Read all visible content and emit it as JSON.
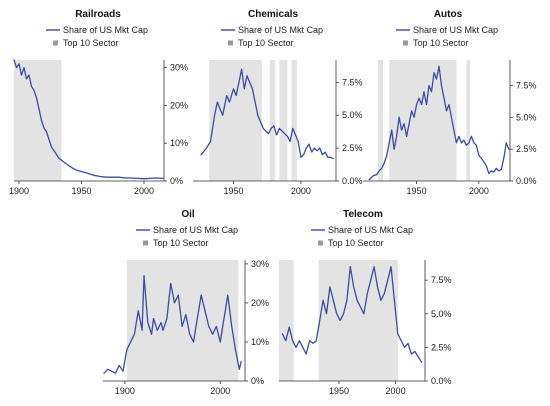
{
  "legend": {
    "line_label": "Share of US Mkt Cap",
    "band_label": "Top 10 Sector"
  },
  "colors": {
    "line": "#3b4aa3",
    "band": "#e3e3e3",
    "legend_square": "#999999",
    "axis": "#333333"
  },
  "chart_data": [
    {
      "type": "line",
      "title": "Railroads",
      "xlim": [
        1896,
        2016
      ],
      "ylim": [
        0,
        0.32
      ],
      "x_ticks": [
        1900,
        1950,
        2000
      ],
      "y_ticks": [
        0,
        0.1,
        0.2,
        0.3
      ],
      "y_tick_labels": [
        "0%",
        "10%",
        "20%",
        "30%"
      ],
      "top10_periods": [
        [
          1896,
          1934
        ]
      ],
      "series": [
        {
          "x": [
            1896,
            1898,
            1900,
            1902,
            1904,
            1906,
            1908,
            1910,
            1912,
            1914,
            1916,
            1918,
            1920,
            1922,
            1924,
            1926,
            1928,
            1930,
            1932,
            1934,
            1936,
            1938,
            1940,
            1945,
            1950,
            1955,
            1960,
            1965,
            1970,
            1975,
            1980,
            1985,
            1990,
            1995,
            2000,
            2005,
            2010,
            2015
          ],
          "values": [
            0.32,
            0.3,
            0.31,
            0.28,
            0.3,
            0.27,
            0.28,
            0.25,
            0.24,
            0.22,
            0.19,
            0.16,
            0.14,
            0.13,
            0.11,
            0.09,
            0.08,
            0.07,
            0.06,
            0.055,
            0.05,
            0.045,
            0.04,
            0.03,
            0.025,
            0.02,
            0.015,
            0.012,
            0.01,
            0.01,
            0.01,
            0.008,
            0.008,
            0.007,
            0.006,
            0.007,
            0.008,
            0.007
          ]
        }
      ]
    },
    {
      "type": "line",
      "title": "Chemicals",
      "xlim": [
        1920,
        2026
      ],
      "ylim": [
        0,
        0.092
      ],
      "x_ticks": [
        1950,
        2000
      ],
      "y_ticks": [
        0,
        0.025,
        0.05,
        0.075
      ],
      "y_tick_labels": [
        "0.0%",
        "2.5%",
        "5.0%",
        "7.5%"
      ],
      "top10_periods": [
        [
          1932,
          1971
        ],
        [
          1977,
          1981
        ],
        [
          1984,
          1990
        ],
        [
          1993,
          1997
        ]
      ],
      "series": [
        {
          "x": [
            1926,
            1930,
            1933,
            1936,
            1938,
            1940,
            1942,
            1945,
            1947,
            1950,
            1952,
            1954,
            1956,
            1958,
            1960,
            1962,
            1964,
            1966,
            1968,
            1970,
            1972,
            1974,
            1976,
            1978,
            1980,
            1982,
            1984,
            1986,
            1988,
            1990,
            1992,
            1994,
            1996,
            1998,
            2000,
            2002,
            2004,
            2006,
            2008,
            2010,
            2012,
            2014,
            2016,
            2018,
            2020,
            2022,
            2024
          ],
          "values": [
            0.02,
            0.025,
            0.03,
            0.05,
            0.06,
            0.055,
            0.05,
            0.065,
            0.06,
            0.07,
            0.065,
            0.075,
            0.085,
            0.07,
            0.08,
            0.075,
            0.07,
            0.06,
            0.05,
            0.045,
            0.04,
            0.038,
            0.036,
            0.04,
            0.042,
            0.035,
            0.04,
            0.038,
            0.036,
            0.034,
            0.03,
            0.04,
            0.035,
            0.03,
            0.018,
            0.02,
            0.025,
            0.028,
            0.022,
            0.025,
            0.023,
            0.025,
            0.02,
            0.022,
            0.018,
            0.018,
            0.017
          ]
        }
      ]
    },
    {
      "type": "line",
      "title": "Autos",
      "xlim": [
        1907,
        2025
      ],
      "ylim": [
        0,
        0.095
      ],
      "x_ticks": [
        1950,
        2000
      ],
      "y_ticks": [
        0,
        0.025,
        0.05,
        0.075
      ],
      "y_tick_labels": [
        "0.0%",
        "2.5%",
        "5.0%",
        "7.5%"
      ],
      "top10_periods": [
        [
          1919,
          1923
        ],
        [
          1928,
          1982
        ],
        [
          1990,
          1993
        ]
      ],
      "series": [
        {
          "x": [
            1912,
            1915,
            1918,
            1920,
            1922,
            1924,
            1926,
            1928,
            1930,
            1932,
            1934,
            1936,
            1938,
            1940,
            1942,
            1944,
            1946,
            1948,
            1950,
            1952,
            1954,
            1956,
            1958,
            1960,
            1962,
            1964,
            1966,
            1968,
            1970,
            1972,
            1974,
            1976,
            1978,
            1980,
            1982,
            1984,
            1986,
            1988,
            1990,
            1992,
            1994,
            1996,
            1998,
            2000,
            2002,
            2004,
            2006,
            2008,
            2010,
            2012,
            2014,
            2016,
            2018,
            2020,
            2022,
            2024
          ],
          "values": [
            0.001,
            0.004,
            0.005,
            0.008,
            0.01,
            0.014,
            0.02,
            0.03,
            0.04,
            0.025,
            0.035,
            0.05,
            0.04,
            0.045,
            0.035,
            0.045,
            0.055,
            0.05,
            0.06,
            0.065,
            0.06,
            0.07,
            0.06,
            0.075,
            0.07,
            0.085,
            0.08,
            0.09,
            0.075,
            0.065,
            0.055,
            0.06,
            0.05,
            0.04,
            0.03,
            0.035,
            0.03,
            0.032,
            0.028,
            0.03,
            0.035,
            0.03,
            0.028,
            0.02,
            0.018,
            0.015,
            0.012,
            0.006,
            0.008,
            0.007,
            0.01,
            0.008,
            0.009,
            0.018,
            0.03,
            0.025
          ]
        }
      ]
    },
    {
      "type": "line",
      "title": "Oil",
      "xlim": [
        1877,
        2026
      ],
      "ylim": [
        0,
        0.31
      ],
      "x_ticks": [
        1900,
        2000
      ],
      "y_ticks": [
        0,
        0.1,
        0.2,
        0.3
      ],
      "y_tick_labels": [
        "0%",
        "10%",
        "20%",
        "30%"
      ],
      "top10_periods": [
        [
          1902,
          2019
        ]
      ],
      "series": [
        {
          "x": [
            1878,
            1882,
            1886,
            1890,
            1894,
            1898,
            1902,
            1906,
            1910,
            1914,
            1918,
            1920,
            1924,
            1928,
            1930,
            1934,
            1938,
            1940,
            1944,
            1948,
            1952,
            1956,
            1960,
            1964,
            1968,
            1972,
            1976,
            1980,
            1984,
            1988,
            1992,
            1996,
            2000,
            2004,
            2008,
            2012,
            2016,
            2020,
            2022
          ],
          "values": [
            0.02,
            0.03,
            0.025,
            0.02,
            0.04,
            0.025,
            0.08,
            0.1,
            0.12,
            0.18,
            0.13,
            0.27,
            0.15,
            0.12,
            0.16,
            0.13,
            0.15,
            0.13,
            0.16,
            0.25,
            0.2,
            0.22,
            0.14,
            0.17,
            0.12,
            0.1,
            0.16,
            0.22,
            0.18,
            0.14,
            0.12,
            0.14,
            0.1,
            0.16,
            0.22,
            0.14,
            0.08,
            0.03,
            0.05
          ]
        }
      ]
    },
    {
      "type": "line",
      "title": "Telecom",
      "xlim": [
        1897,
        2026
      ],
      "ylim": [
        0,
        0.09
      ],
      "x_ticks": [
        1950,
        2000
      ],
      "y_ticks": [
        0,
        0.025,
        0.05,
        0.075
      ],
      "y_tick_labels": [
        "0.0%",
        "2.5%",
        "5.0%",
        "7.5%"
      ],
      "top10_periods": [
        [
          1897,
          1910
        ],
        [
          1932,
          2002
        ]
      ],
      "series": [
        {
          "x": [
            1900,
            1903,
            1906,
            1909,
            1912,
            1915,
            1918,
            1921,
            1924,
            1927,
            1930,
            1933,
            1936,
            1939,
            1942,
            1945,
            1948,
            1951,
            1954,
            1957,
            1960,
            1963,
            1966,
            1969,
            1972,
            1975,
            1978,
            1981,
            1984,
            1987,
            1990,
            1993,
            1996,
            1999,
            2002,
            2005,
            2008,
            2011,
            2014,
            2017,
            2020,
            2023
          ],
          "values": [
            0.035,
            0.03,
            0.04,
            0.03,
            0.025,
            0.03,
            0.025,
            0.02,
            0.03,
            0.028,
            0.03,
            0.045,
            0.06,
            0.05,
            0.07,
            0.06,
            0.05,
            0.045,
            0.05,
            0.06,
            0.085,
            0.07,
            0.06,
            0.055,
            0.05,
            0.065,
            0.075,
            0.085,
            0.07,
            0.06,
            0.065,
            0.075,
            0.085,
            0.06,
            0.035,
            0.03,
            0.025,
            0.028,
            0.02,
            0.022,
            0.018,
            0.014
          ]
        }
      ]
    }
  ]
}
